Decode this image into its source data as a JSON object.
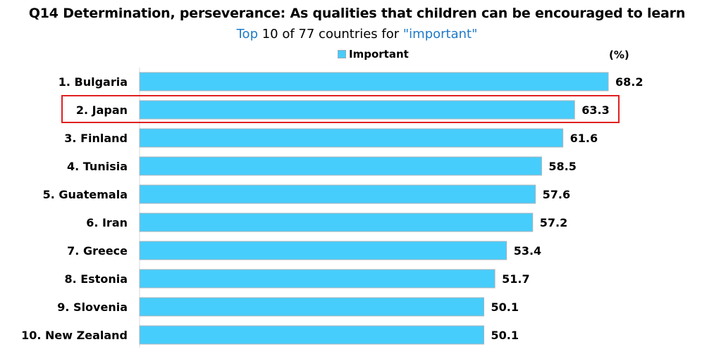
{
  "header": {
    "title": "Q14 Determination, perseverance: As qualities that children can be encouraged to learn",
    "subtitle_part1": "Top",
    "subtitle_part2": " 10 of 77 countries for ",
    "subtitle_part3": "\"important\""
  },
  "legend": {
    "label": "Important",
    "unit": "(%)"
  },
  "colors": {
    "bar": "#47cdfb",
    "bar_border": "#aab4bd",
    "highlight": "#e02020",
    "axis": "#d9d9d9"
  },
  "chart_data": {
    "type": "bar",
    "orientation": "horizontal",
    "categories": [
      "1. Bulgaria",
      "2. Japan",
      "3. Finland",
      "4. Tunisia",
      "5. Guatemala",
      "6. Iran",
      "7. Greece",
      "8. Estonia",
      "9. Slovenia",
      "10. New Zealand"
    ],
    "series": [
      {
        "name": "Important",
        "values": [
          68.2,
          63.3,
          61.6,
          58.5,
          57.6,
          57.2,
          53.4,
          51.7,
          50.1,
          50.1
        ]
      }
    ],
    "value_labels": [
      "68.2",
      "63.3",
      "61.6",
      "58.5",
      "57.6",
      "57.2",
      "53.4",
      "51.7",
      "50.1",
      "50.1"
    ],
    "xlim": [
      0,
      68.2
    ],
    "highlighted_category": "2. Japan",
    "grid": false,
    "legend_position": "top-center"
  }
}
